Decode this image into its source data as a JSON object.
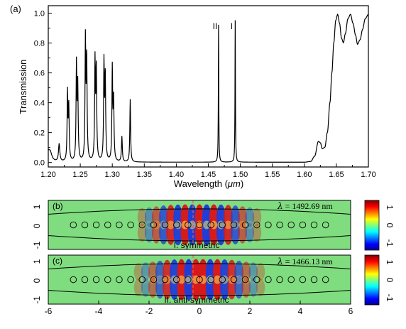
{
  "figure": {
    "panel_a": {
      "label": "(a)",
      "chart_data": {
        "type": "line",
        "xlabel_prefix": "Wavelength (",
        "xlabel_unit": "μm",
        "xlabel_suffix": ")",
        "ylabel": "Transmission",
        "xlim": [
          1.2,
          1.7
        ],
        "ylim": [
          -0.03,
          1.05
        ],
        "x_ticks": [
          "1.20",
          "1.25",
          "1.30",
          "1.35",
          "1.40",
          "1.45",
          "1.50",
          "1.55",
          "1.60",
          "1.65",
          "1.70"
        ],
        "y_ticks": [
          "0.0",
          "0.2",
          "0.4",
          "0.6",
          "0.8",
          "1.0"
        ],
        "annotations": [
          {
            "text": "II",
            "x": 1.466
          },
          {
            "text": "I",
            "x": 1.492
          }
        ],
        "peaks": [
          {
            "x": 1.203,
            "y": 0.05,
            "w": 0.003
          },
          {
            "x": 1.217,
            "y": 0.12,
            "w": 0.0012
          },
          {
            "x": 1.23,
            "y": 0.45,
            "w": 0.0007
          },
          {
            "x": 1.232,
            "y": 0.36,
            "w": 0.0008
          },
          {
            "x": 1.244,
            "y": 0.63,
            "w": 0.0007
          },
          {
            "x": 1.246,
            "y": 0.5,
            "w": 0.0008
          },
          {
            "x": 1.258,
            "y": 0.79,
            "w": 0.0007
          },
          {
            "x": 1.26,
            "y": 0.66,
            "w": 0.0008
          },
          {
            "x": 1.273,
            "y": 0.65,
            "w": 0.0007
          },
          {
            "x": 1.275,
            "y": 0.6,
            "w": 0.0008
          },
          {
            "x": 1.287,
            "y": 0.64,
            "w": 0.0007
          },
          {
            "x": 1.289,
            "y": 0.55,
            "w": 0.0008
          },
          {
            "x": 1.3,
            "y": 0.61,
            "w": 0.0007
          },
          {
            "x": 1.302,
            "y": 0.4,
            "w": 0.0008
          },
          {
            "x": 1.315,
            "y": 0.17,
            "w": 0.0008
          },
          {
            "x": 1.328,
            "y": 0.42,
            "w": 0.0007
          },
          {
            "x": 1.466,
            "y": 0.92,
            "w": 0.0004
          },
          {
            "x": 1.492,
            "y": 0.95,
            "w": 0.0004
          }
        ],
        "band_edge": [
          [
            1.6,
            0.0
          ],
          [
            1.61,
            0.005
          ],
          [
            1.616,
            0.04
          ],
          [
            1.622,
            0.14
          ],
          [
            1.625,
            0.13
          ],
          [
            1.628,
            0.09
          ],
          [
            1.632,
            0.1
          ],
          [
            1.636,
            0.2
          ],
          [
            1.64,
            0.4
          ],
          [
            1.643,
            0.6
          ],
          [
            1.646,
            0.8
          ],
          [
            1.649,
            0.95
          ],
          [
            1.652,
            0.99
          ],
          [
            1.655,
            0.93
          ],
          [
            1.658,
            0.83
          ],
          [
            1.661,
            0.8
          ],
          [
            1.664,
            0.86
          ],
          [
            1.668,
            0.96
          ],
          [
            1.672,
            0.99
          ],
          [
            1.676,
            0.93
          ],
          [
            1.68,
            0.85
          ],
          [
            1.683,
            0.79
          ],
          [
            1.687,
            0.82
          ],
          [
            1.691,
            0.89
          ],
          [
            1.695,
            0.96
          ],
          [
            1.7,
            0.99
          ]
        ]
      }
    },
    "panel_b": {
      "label": "(b)",
      "lambda_symbol": "λ",
      "lambda_value": "= 1492.69 nm",
      "mode_label": "I. symmetric",
      "y_ticks": [
        "1",
        "0",
        "-1"
      ],
      "colorbar_ticks": [
        "1",
        "0",
        "-1"
      ]
    },
    "panel_c": {
      "label": "(c)",
      "lambda_symbol": "λ",
      "lambda_value": "= 1466.13 nm",
      "mode_label": "II. anti-symmetric",
      "y_ticks": [
        "1",
        "0",
        "-1"
      ],
      "colorbar_ticks": [
        "1",
        "0",
        "-1"
      ],
      "x_ticks": [
        "-6",
        "-4",
        "-2",
        "0",
        "2",
        "4",
        "6"
      ]
    },
    "colors": {
      "field_background": "#7fdc7f",
      "positive": "#d7191c",
      "negative": "#1f3dd8",
      "guide_line": "#d06060"
    }
  }
}
